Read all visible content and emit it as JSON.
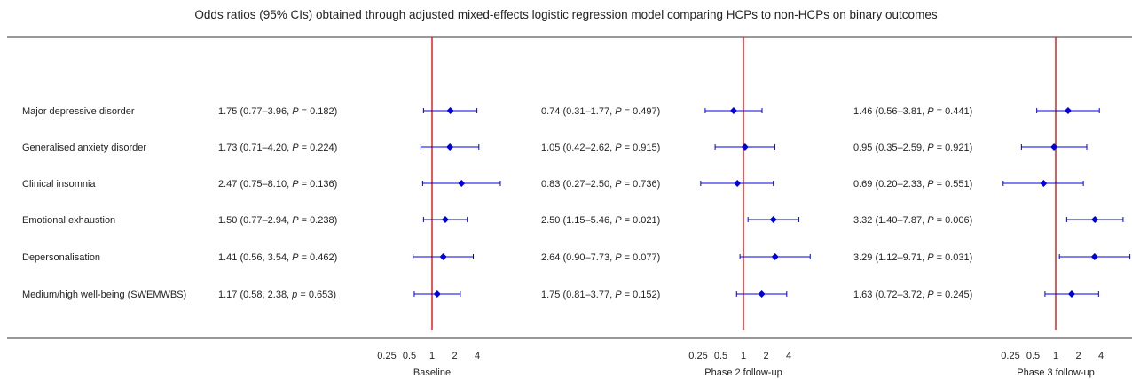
{
  "title": "Odds ratios (95% CIs) obtained through adjusted mixed-effects logistic regression model comparing HCPs to non-HCPs on binary outcomes",
  "colors": {
    "reference_line": "#e02020",
    "marker": "#0000dd",
    "axis": "#333333"
  },
  "chart_data": {
    "type": "forest",
    "scale": "log",
    "reference_value": 1,
    "xticks": [
      0.25,
      0.5,
      1,
      2,
      4
    ],
    "xtick_labels": [
      "0.25",
      "0.5",
      "1",
      "2",
      "4"
    ],
    "outcomes": [
      "Major depressive disorder",
      "Generalised anxiety disorder",
      "Clinical insomnia",
      "Emotional exhaustion",
      "Depersonalisation",
      "Medium/high well-being (SWEMWBS)"
    ],
    "panels": [
      {
        "xlabel": "Baseline",
        "rows": [
          {
            "or": 1.75,
            "lo": 0.77,
            "hi": 3.96,
            "text": "1.75 (0.77–3.96, ",
            "p_sym": "P",
            "p_text": " = 0.182)"
          },
          {
            "or": 1.73,
            "lo": 0.71,
            "hi": 4.2,
            "text": "1.73 (0.71–4.20, ",
            "p_sym": "P",
            "p_text": " = 0.224)"
          },
          {
            "or": 2.47,
            "lo": 0.75,
            "hi": 8.1,
            "text": "2.47 (0.75–8.10, ",
            "p_sym": "P",
            "p_text": " = 0.136)"
          },
          {
            "or": 1.5,
            "lo": 0.77,
            "hi": 2.94,
            "text": "1.50 (0.77–2.94, ",
            "p_sym": "P",
            "p_text": " = 0.238)"
          },
          {
            "or": 1.41,
            "lo": 0.56,
            "hi": 3.54,
            "text": "1.41 (0.56, 3.54, ",
            "p_sym": "P",
            "p_text": " = 0.462)"
          },
          {
            "or": 1.17,
            "lo": 0.58,
            "hi": 2.38,
            "text": "1.17 (0.58, 2.38, ",
            "p_sym": "p",
            "p_text": " = 0.653)"
          }
        ]
      },
      {
        "xlabel": "Phase 2 follow-up",
        "rows": [
          {
            "or": 0.74,
            "lo": 0.31,
            "hi": 1.77,
            "text": "0.74 (0.31–1.77, ",
            "p_sym": "P",
            "p_text": " = 0.497)"
          },
          {
            "or": 1.05,
            "lo": 0.42,
            "hi": 2.62,
            "text": "1.05 (0.42–2.62, ",
            "p_sym": "P",
            "p_text": " = 0.915)"
          },
          {
            "or": 0.83,
            "lo": 0.27,
            "hi": 2.5,
            "text": "0.83 (0.27–2.50, ",
            "p_sym": "P",
            "p_text": " = 0.736)"
          },
          {
            "or": 2.5,
            "lo": 1.15,
            "hi": 5.46,
            "text": "2.50 (1.15–5.46, ",
            "p_sym": "P",
            "p_text": " = 0.021)"
          },
          {
            "or": 2.64,
            "lo": 0.9,
            "hi": 7.73,
            "text": "2.64 (0.90–7.73, ",
            "p_sym": "P",
            "p_text": " = 0.077)"
          },
          {
            "or": 1.75,
            "lo": 0.81,
            "hi": 3.77,
            "text": "1.75 (0.81–3.77, ",
            "p_sym": "P",
            "p_text": " = 0.152)"
          }
        ]
      },
      {
        "xlabel": "Phase 3 follow-up",
        "rows": [
          {
            "or": 1.46,
            "lo": 0.56,
            "hi": 3.81,
            "text": "1.46 (0.56–3.81, ",
            "p_sym": "P",
            "p_text": " = 0.441)"
          },
          {
            "or": 0.95,
            "lo": 0.35,
            "hi": 2.59,
            "text": "0.95 (0.35–2.59, ",
            "p_sym": "P",
            "p_text": " = 0.921)"
          },
          {
            "or": 0.69,
            "lo": 0.2,
            "hi": 2.33,
            "text": "0.69 (0.20–2.33, ",
            "p_sym": "P",
            "p_text": " = 0.551)"
          },
          {
            "or": 3.32,
            "lo": 1.4,
            "hi": 7.87,
            "text": "3.32 (1.40–7.87, ",
            "p_sym": "P",
            "p_text": " = 0.006)"
          },
          {
            "or": 3.29,
            "lo": 1.12,
            "hi": 9.71,
            "text": "3.29 (1.12–9.71, ",
            "p_sym": "P",
            "p_text": " = 0.031)"
          },
          {
            "or": 1.63,
            "lo": 0.72,
            "hi": 3.72,
            "text": "1.63 (0.72–3.72, ",
            "p_sym": "P",
            "p_text": " = 0.245)"
          }
        ]
      }
    ]
  }
}
